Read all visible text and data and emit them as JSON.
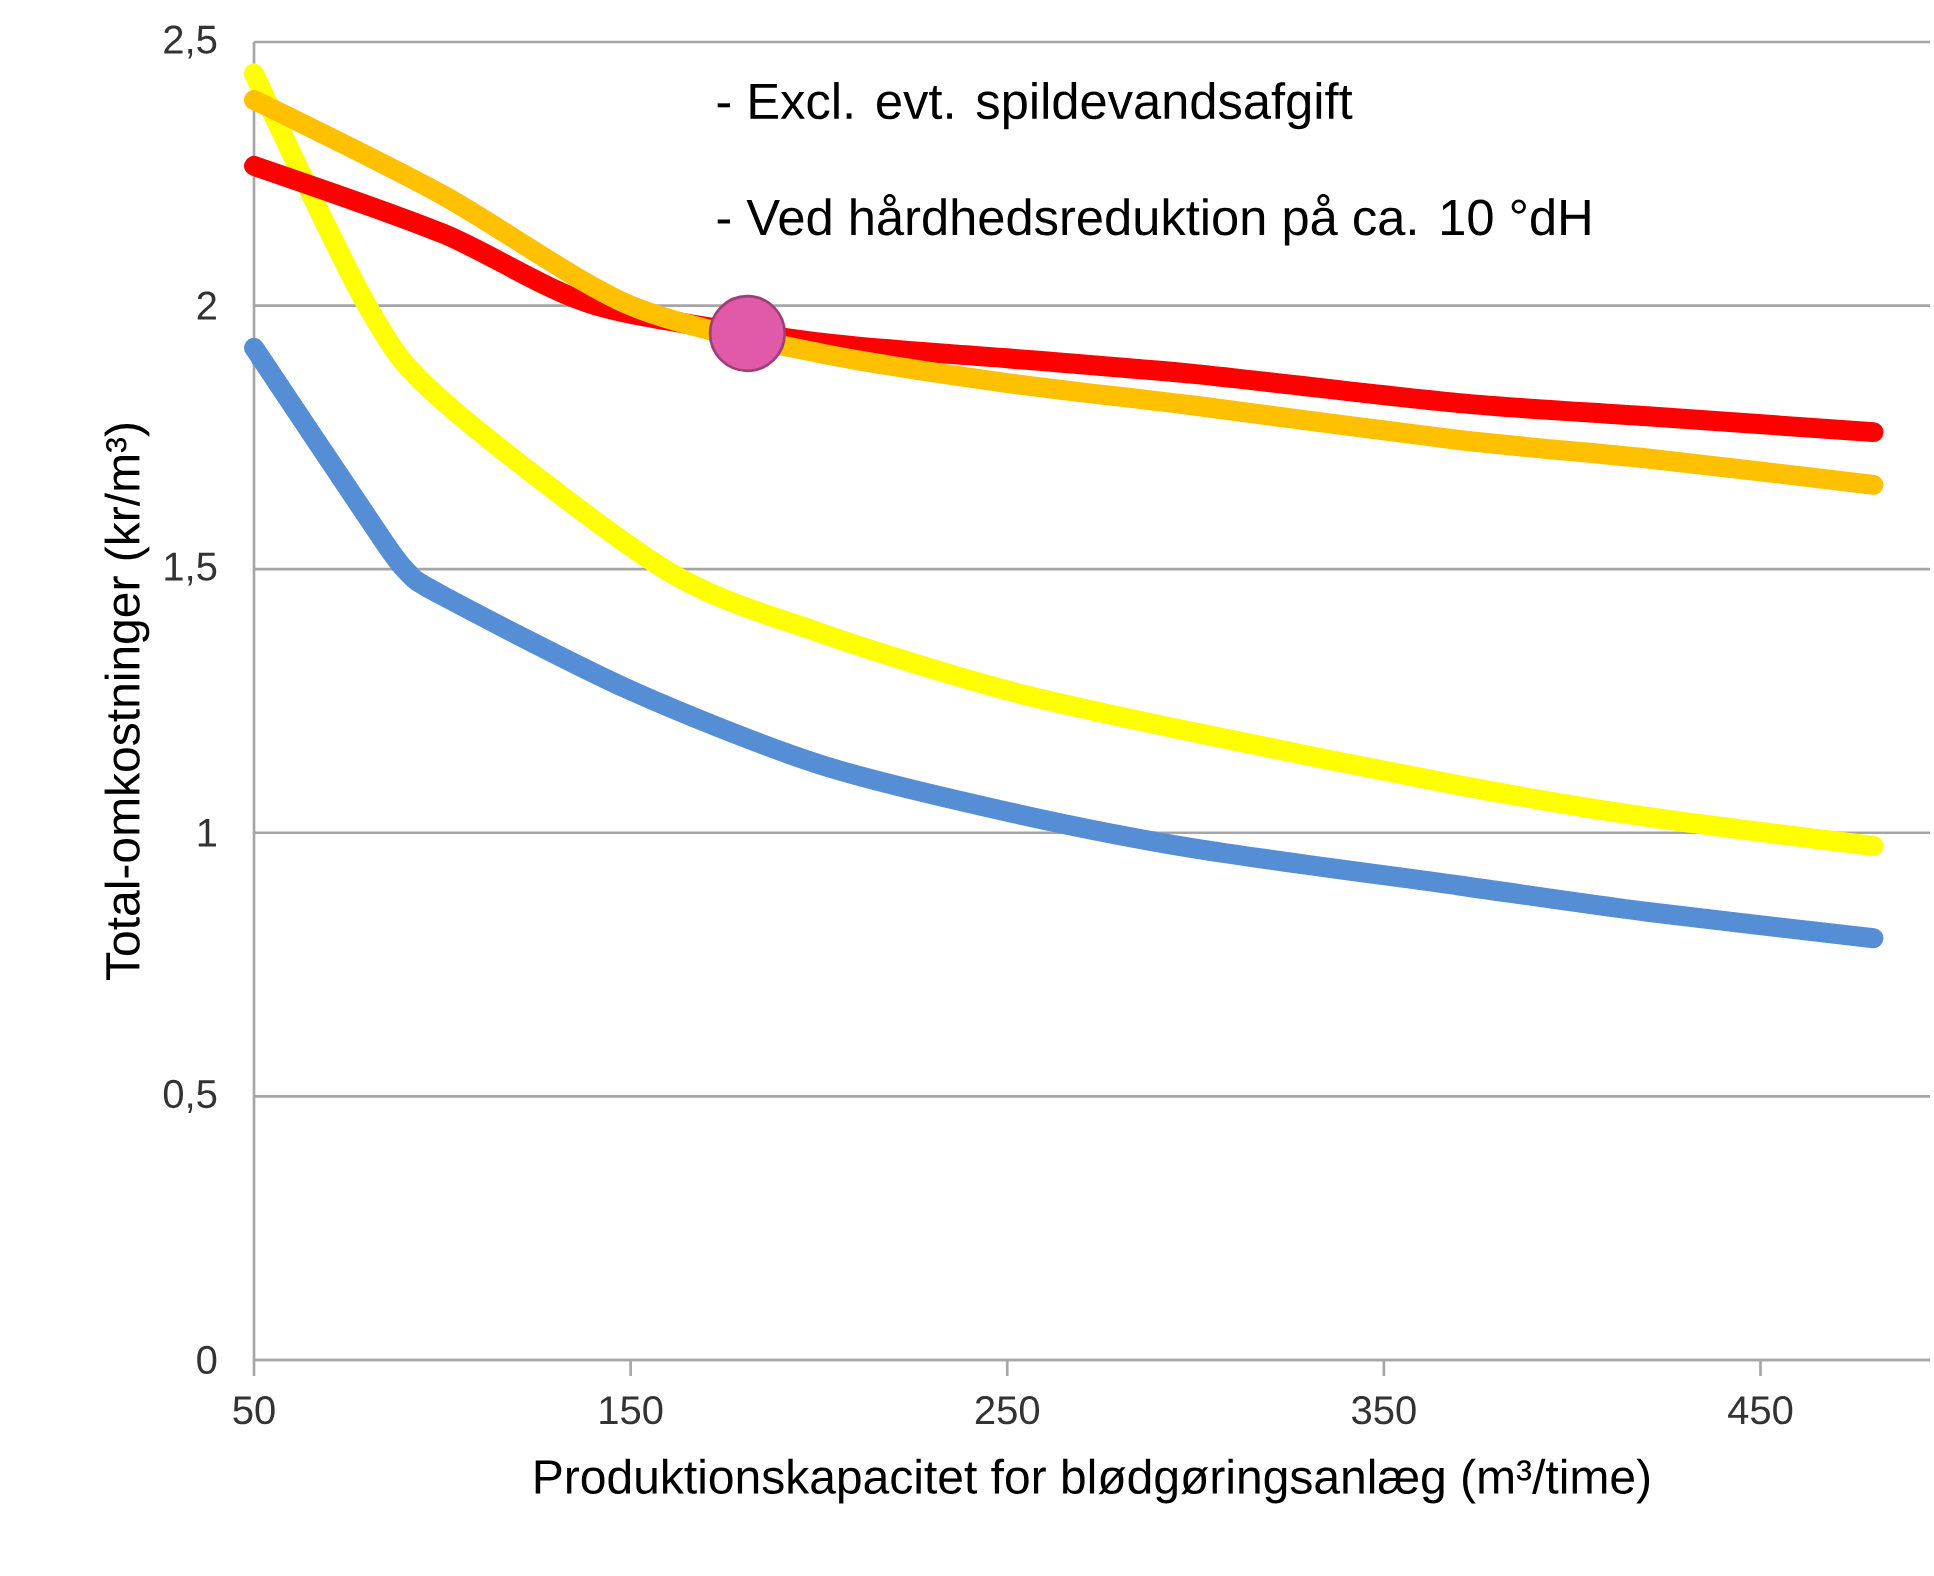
{
  "chart_data": {
    "type": "line",
    "xlabel": "Produktionskapacitet for blødgøringsanlæg (m³/time)",
    "ylabel": "Total-omkostninger (kr/m³)",
    "annotations": [
      "- Excl. evt. spildevandsafgift",
      "- Ved hårdhedsreduktion på ca. 10 °dH"
    ],
    "xlim": [
      50,
      495
    ],
    "xticks": [
      50,
      150,
      250,
      350,
      450
    ],
    "ylim": [
      0,
      2.5
    ],
    "yticks": [
      0,
      {
        "value": 0.5,
        "label": "0,5"
      },
      1,
      {
        "value": 1.5,
        "label": "1,5"
      },
      2,
      {
        "value": 2.5,
        "label": "2,5"
      }
    ],
    "grid": "y",
    "line_style": "solid",
    "series": [
      {
        "color": "#558ed5",
        "x": [
          50,
          80,
          90,
          100,
          150,
          200,
          250,
          300,
          370,
          420,
          480
        ],
        "values": [
          1.92,
          1.6,
          1.5,
          1.45,
          1.27,
          1.13,
          1.04,
          0.97,
          0.9,
          0.85,
          0.8
        ]
      },
      {
        "color": "#ffff00",
        "x": [
          50,
          80,
          100,
          159,
          200,
          250,
          300,
          370,
          420,
          480
        ],
        "values": [
          2.44,
          2.0,
          1.82,
          1.5,
          1.38,
          1.27,
          1.19,
          1.09,
          1.03,
          0.975
        ]
      },
      {
        "color": "#ff0000",
        "x": [
          50,
          100,
          141,
          200,
          250,
          300,
          370,
          420,
          480
        ],
        "values": [
          2.265,
          2.137,
          2.0,
          1.93,
          1.9,
          1.87,
          1.815,
          1.79,
          1.76
        ]
      },
      {
        "color": "#ffc000",
        "x": [
          50,
          100,
          150,
          200,
          250,
          300,
          370,
          420,
          480
        ],
        "values": [
          2.39,
          2.21,
          2.0,
          1.91,
          1.853,
          1.81,
          1.745,
          1.71,
          1.66
        ]
      },
      {
        "type": "scatter",
        "color": "#e05aa8",
        "marker": "circle",
        "x": [
          181
        ],
        "values": [
          1.947
        ]
      }
    ]
  }
}
